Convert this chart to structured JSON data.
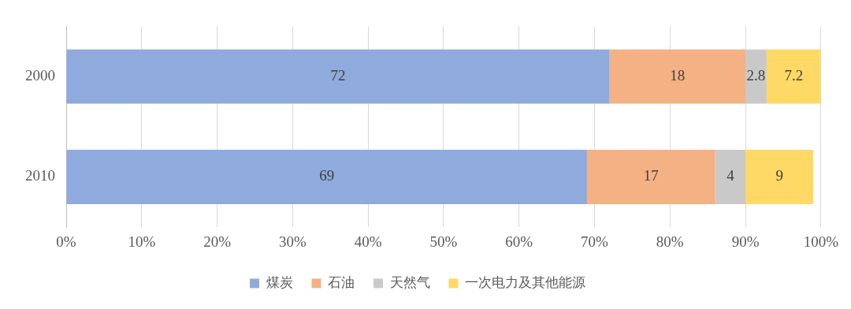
{
  "chart_data": {
    "type": "bar",
    "orientation": "horizontal",
    "stacked": true,
    "categories": [
      "2000",
      "2010"
    ],
    "series": [
      {
        "name": "煤炭",
        "color": "#8faadc",
        "values": [
          72,
          69
        ]
      },
      {
        "name": "石油",
        "color": "#f4b183",
        "values": [
          18,
          17
        ]
      },
      {
        "name": "天然气",
        "color": "#c9c9c9",
        "values": [
          2.8,
          4
        ]
      },
      {
        "name": "一次电力及其他能源",
        "color": "#ffd966",
        "values": [
          7.2,
          9
        ]
      }
    ],
    "xlim": [
      0,
      100
    ],
    "xticks": [
      {
        "value": 0,
        "label": "0%"
      },
      {
        "value": 10,
        "label": "10%"
      },
      {
        "value": 20,
        "label": "20%"
      },
      {
        "value": 30,
        "label": "30%"
      },
      {
        "value": 40,
        "label": "40%"
      },
      {
        "value": 50,
        "label": "50%"
      },
      {
        "value": 60,
        "label": "60%"
      },
      {
        "value": 70,
        "label": "70%"
      },
      {
        "value": 80,
        "label": "80%"
      },
      {
        "value": 90,
        "label": "90%"
      },
      {
        "value": 100,
        "label": "100%"
      }
    ],
    "grid": "x",
    "legend": "bottom",
    "data_labels": true
  }
}
